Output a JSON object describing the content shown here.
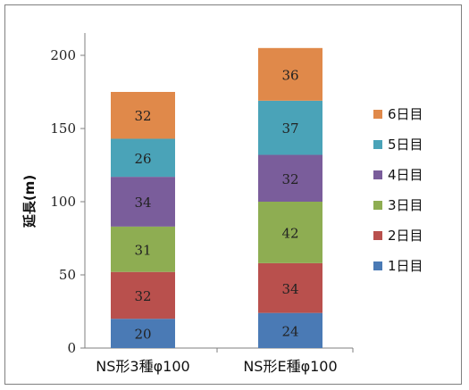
{
  "chart_data": {
    "type": "bar",
    "stacked": true,
    "categories": [
      "NS形3種φ100",
      "NS形E種φ100"
    ],
    "series": [
      {
        "name": "1日目",
        "values": [
          20,
          24
        ],
        "color": "#4a7ab5"
      },
      {
        "name": "2日目",
        "values": [
          32,
          34
        ],
        "color": "#b9504d"
      },
      {
        "name": "3日目",
        "values": [
          31,
          42
        ],
        "color": "#8ead52"
      },
      {
        "name": "4日目",
        "values": [
          34,
          32
        ],
        "color": "#7a5d9b"
      },
      {
        "name": "5日目",
        "values": [
          26,
          37
        ],
        "color": "#4aa3b8"
      },
      {
        "name": "6日目",
        "values": [
          32,
          36
        ],
        "color": "#e0894a"
      }
    ],
    "ylabel": "延長(m)",
    "xlabel": "",
    "ylim": [
      0,
      200
    ],
    "yticks": [
      0,
      50,
      100,
      150,
      200
    ],
    "legend_position": "right",
    "grid": false
  }
}
